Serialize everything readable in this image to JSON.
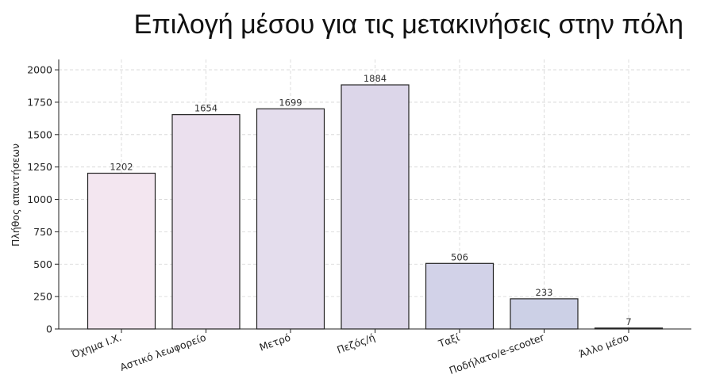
{
  "chart_data": {
    "type": "bar",
    "title": "Επιλογή μέσου για τις μετακινήσεις στην πόλη",
    "xlabel": "",
    "ylabel": "Πλήθος απαντήσεων",
    "categories": [
      "Όχημα Ι.Χ.",
      "Αστικό λεωφορείο",
      "Μετρό",
      "Πεζός/ή",
      "Ταξί",
      "Ποδήλατο/e-scooter",
      "Άλλο μέσο"
    ],
    "values": [
      1202,
      1654,
      1699,
      1884,
      506,
      233,
      7
    ],
    "ylim": [
      0,
      2080
    ],
    "yticks": [
      0,
      250,
      500,
      750,
      1000,
      1250,
      1500,
      1750,
      2000
    ],
    "grid": true,
    "bar_colors": [
      "#f3e6f0",
      "#ebe0ee",
      "#e4dded",
      "#dcd6e9",
      "#d2d2e8",
      "#ccd0e6",
      "#c8cde6"
    ],
    "edge_color": "#222222"
  }
}
